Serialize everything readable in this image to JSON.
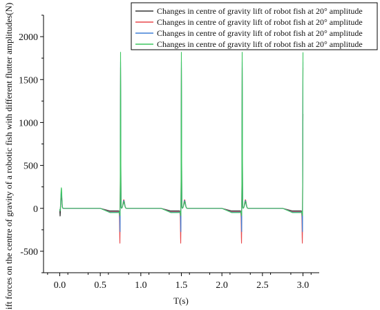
{
  "chart_data": {
    "type": "line",
    "xlabel": "T(s)",
    "ylabel": "Lift forces on the centre of gravity of a robotic fish with different flutter amplitudes(N)",
    "xlim": [
      -0.2,
      3.2
    ],
    "ylim": [
      -750,
      2250
    ],
    "x_ticks": [
      0.0,
      0.5,
      1.0,
      1.5,
      2.0,
      2.5,
      3.0
    ],
    "x_tick_labels": [
      "0.0",
      "0.5",
      "1.0",
      "1.5",
      "2.0",
      "2.5",
      "3.0"
    ],
    "y_ticks": [
      -500,
      0,
      500,
      1000,
      1500,
      2000
    ],
    "y_tick_labels": [
      "-500",
      "0",
      "500",
      "1000",
      "1500",
      "2000"
    ],
    "grid": false,
    "legend_position": "top-right",
    "spike_times": [
      0.0,
      0.75,
      1.5,
      2.25,
      3.0
    ],
    "series": [
      {
        "name": "Changes in centre of gravity lift of robot fish at 20° amplitude",
        "color": "#333333",
        "peak": 1100,
        "trough": -120,
        "initial_spike": 150,
        "trough_offset": -0.01,
        "baseline_dip": -30,
        "ripple": 70
      },
      {
        "name": "Changes in centre of gravity lift of robot fish at 20° amplitude",
        "color": "#e8474a",
        "peak": 1650,
        "trough": -400,
        "initial_spike": 180,
        "trough_offset": -0.008,
        "baseline_dip": -40,
        "ripple": 100
      },
      {
        "name": "Changes in centre of gravity lift of robot fish at 20° amplitude",
        "color": "#3f7fd6",
        "peak": 1800,
        "trough": -380,
        "initial_spike": 200,
        "trough_offset": -0.005,
        "baseline_dip": -45,
        "ripple": 90
      },
      {
        "name": "Changes in centre of gravity lift of robot fish at 20° amplitude",
        "color": "#3cc65f",
        "peak": 2000,
        "trough": -300,
        "initial_spike": 240,
        "trough_offset": -0.003,
        "baseline_dip": -50,
        "ripple": 80
      }
    ]
  }
}
